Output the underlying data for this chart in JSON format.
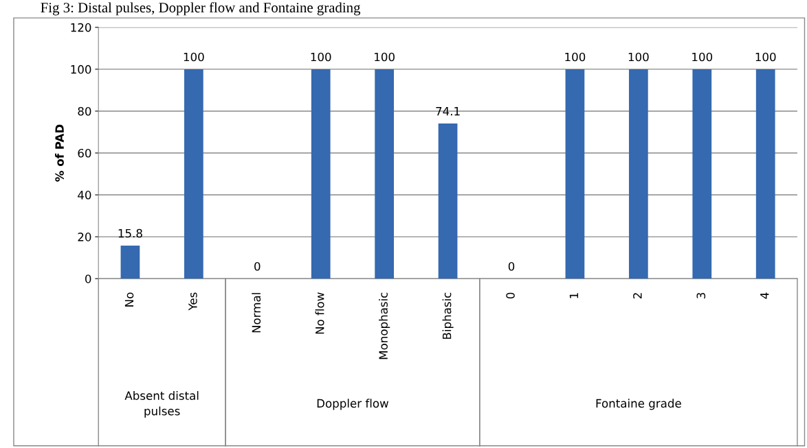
{
  "chart_data": {
    "type": "bar",
    "title": "Fig 3: Distal pulses, Doppler flow and Fontaine grading",
    "ylabel": "% of PAD",
    "categories": [
      "No",
      "Yes",
      "Normal",
      "No flow",
      "Monophasic",
      "Biphasic",
      "0",
      "1",
      "2",
      "3",
      "4"
    ],
    "values": [
      15.8,
      100,
      0,
      100,
      100,
      74.1,
      0,
      100,
      100,
      100,
      100
    ],
    "color": "#3569b0",
    "ylim": [
      0,
      120
    ],
    "yticks": [
      0,
      20,
      40,
      60,
      80,
      100,
      120
    ],
    "grid": "y",
    "data_labels": true,
    "annotations": [
      "Absent distal\npulses",
      "Doppler flow",
      "Fontaine grade"
    ]
  }
}
